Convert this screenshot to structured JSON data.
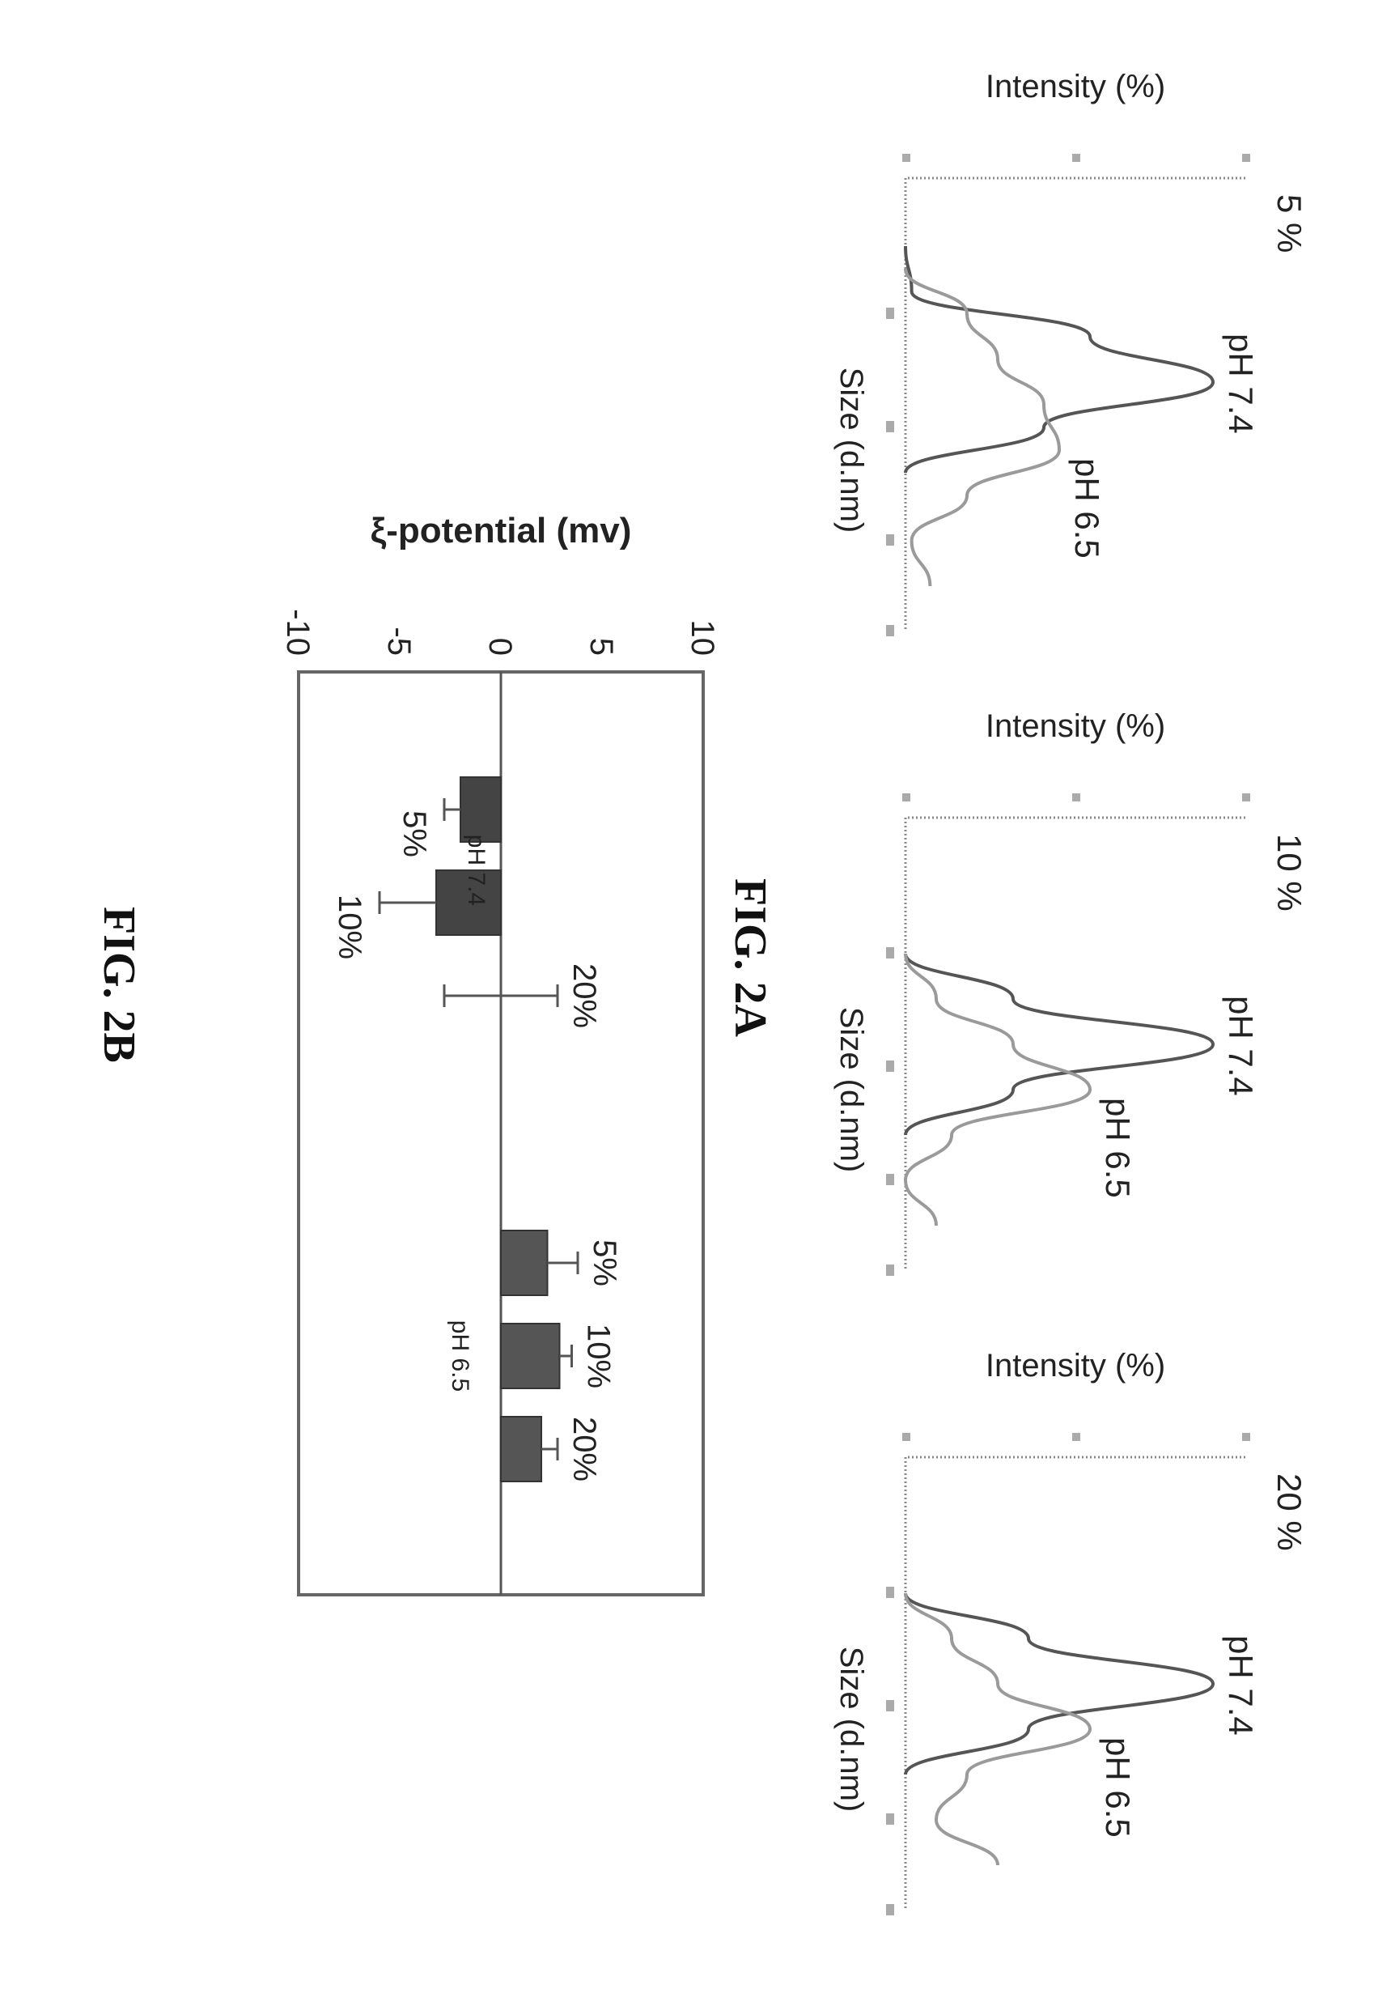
{
  "figure_2a": {
    "label": "FIG. 2A",
    "panels": [
      {
        "concentration_label": "5 %",
        "y_label": "Intensity (%)",
        "x_label": "Size (d.nm)",
        "peak_labels": [
          "pH 7.4",
          "pH 6.5"
        ]
      },
      {
        "concentration_label": "10 %",
        "y_label": "Intensity (%)",
        "x_label": "Size (d.nm)",
        "peak_labels": [
          "pH 7.4",
          "pH 6.5"
        ]
      },
      {
        "concentration_label": "20 %",
        "y_label": "Intensity (%)",
        "x_label": "Size (d.nm)",
        "peak_labels": [
          "pH 7.4",
          "pH 6.5"
        ]
      }
    ]
  },
  "figure_2b": {
    "label": "FIG. 2B"
  },
  "colors": {
    "ph74_bar": "#444444",
    "ph65_bar": "#555555",
    "ph74_line": "#555555",
    "ph65_line": "#9a9a9a",
    "axis": "#888888"
  },
  "chart_data": [
    {
      "type": "line",
      "panel": "5 %",
      "xlabel": "Size (d.nm)",
      "ylabel": "Intensity (%)",
      "series": [
        {
          "name": "pH 7.4",
          "x": [
            0.15,
            0.25,
            0.35,
            0.45,
            0.55,
            0.65
          ],
          "y": [
            0,
            0.02,
            0.6,
            1.0,
            0.45,
            0.0
          ]
        },
        {
          "name": "pH 6.5",
          "x": [
            0.2,
            0.3,
            0.4,
            0.5,
            0.6,
            0.7,
            0.8,
            0.9
          ],
          "y": [
            0,
            0.2,
            0.3,
            0.45,
            0.5,
            0.2,
            0.02,
            0.08
          ]
        }
      ]
    },
    {
      "type": "line",
      "panel": "10 %",
      "xlabel": "Size (d.nm)",
      "ylabel": "Intensity (%)",
      "series": [
        {
          "name": "pH 7.4",
          "x": [
            0.3,
            0.4,
            0.5,
            0.6,
            0.7
          ],
          "y": [
            0,
            0.35,
            1.0,
            0.35,
            0
          ]
        },
        {
          "name": "pH 6.5",
          "x": [
            0.3,
            0.4,
            0.5,
            0.6,
            0.7,
            0.8,
            0.9
          ],
          "y": [
            0,
            0.1,
            0.35,
            0.6,
            0.15,
            0,
            0.1
          ]
        }
      ]
    },
    {
      "type": "line",
      "panel": "20 %",
      "xlabel": "Size (d.nm)",
      "ylabel": "Intensity (%)",
      "series": [
        {
          "name": "pH 7.4",
          "x": [
            0.3,
            0.4,
            0.5,
            0.6,
            0.7
          ],
          "y": [
            0,
            0.4,
            1.0,
            0.4,
            0
          ]
        },
        {
          "name": "pH 6.5",
          "x": [
            0.3,
            0.4,
            0.5,
            0.6,
            0.7,
            0.8,
            0.9
          ],
          "y": [
            0,
            0.15,
            0.3,
            0.6,
            0.2,
            0.1,
            0.3
          ]
        }
      ]
    },
    {
      "type": "bar",
      "ylabel": "ξ-potential (mv)",
      "ylim": [
        -10,
        10
      ],
      "yticks": [
        10,
        5,
        0,
        -5,
        -10
      ],
      "grid": false,
      "groups": [
        {
          "name": "pH 7.4",
          "categories": [
            "5%",
            "10%",
            "20%"
          ],
          "values": [
            -2.0,
            -3.2,
            0.0
          ],
          "errors": [
            0.8,
            2.8,
            2.8
          ]
        },
        {
          "name": "pH 6.5",
          "categories": [
            "5%",
            "10%",
            "20%"
          ],
          "values": [
            2.3,
            2.9,
            2.0
          ],
          "errors": [
            1.5,
            0.6,
            0.8
          ]
        }
      ]
    }
  ]
}
